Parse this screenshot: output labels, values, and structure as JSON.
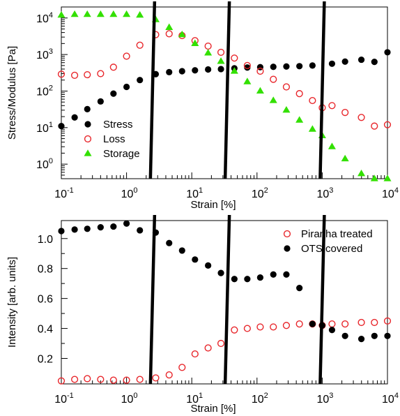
{
  "chart_data": [
    {
      "type": "scatter",
      "xlabel": "Strain [%]",
      "ylabel": "Stress/Modulus [Pa]",
      "xscale": "log",
      "yscale": "log",
      "xlim": [
        0.1,
        10000
      ],
      "ylim": [
        0.4,
        20000
      ],
      "x_ticks": [
        {
          "value": 0.1,
          "base": "10",
          "exp": "-1"
        },
        {
          "value": 1,
          "base": "10",
          "exp": "0"
        },
        {
          "value": 10,
          "base": "10",
          "exp": "1"
        },
        {
          "value": 100,
          "base": "10",
          "exp": "2"
        },
        {
          "value": 1000,
          "base": "10",
          "exp": "3"
        },
        {
          "value": 10000,
          "base": "10",
          "exp": "4"
        }
      ],
      "y_ticks": [
        {
          "value": 1,
          "base": "10",
          "exp": "0"
        },
        {
          "value": 10,
          "base": "10",
          "exp": "1"
        },
        {
          "value": 100,
          "base": "10",
          "exp": "2"
        },
        {
          "value": 1000,
          "base": "10",
          "exp": "3"
        },
        {
          "value": 10000,
          "base": "10",
          "exp": "4"
        }
      ],
      "grid": false,
      "legend_position": "bottom-left",
      "vertical_lines_x": [
        2.5,
        35,
        1000
      ],
      "series": [
        {
          "name": "Stress",
          "marker": "filled-circle",
          "color": "#000000",
          "x": [
            0.1,
            0.16,
            0.25,
            0.4,
            0.63,
            1.0,
            1.6,
            2.8,
            4.5,
            7.1,
            11.2,
            17.8,
            28,
            45,
            71,
            112,
            178,
            282,
            447,
            708,
            1412,
            2239,
            3981,
            6310,
            10000
          ],
          "y": [
            11,
            19,
            32,
            52,
            85,
            130,
            200,
            290,
            330,
            350,
            370,
            390,
            400,
            420,
            440,
            450,
            460,
            470,
            480,
            500,
            560,
            640,
            720,
            630,
            1150
          ]
        },
        {
          "name": "Loss",
          "marker": "open-circle",
          "color": "#e8262b",
          "x": [
            0.1,
            0.16,
            0.25,
            0.4,
            0.63,
            1.0,
            1.6,
            2.8,
            4.5,
            7.1,
            11.2,
            17.8,
            28,
            45,
            71,
            112,
            178,
            282,
            447,
            708,
            1000,
            1412,
            2239,
            3981,
            6310,
            10000
          ],
          "y": [
            290,
            270,
            280,
            300,
            450,
            900,
            1800,
            3500,
            3700,
            3300,
            2400,
            1700,
            1150,
            800,
            500,
            350,
            210,
            130,
            85,
            55,
            35,
            40,
            26,
            19,
            11,
            12
          ]
        },
        {
          "name": "Storage",
          "marker": "filled-triangle",
          "color": "#33e000",
          "x": [
            0.1,
            0.16,
            0.25,
            0.4,
            0.63,
            1.0,
            1.6,
            2.8,
            4.5,
            7.1,
            11.2,
            17.8,
            28,
            45,
            71,
            112,
            178,
            282,
            447,
            708,
            1000,
            1412,
            2239,
            3981,
            6310,
            10000
          ],
          "y": [
            12000,
            12500,
            12500,
            12500,
            12500,
            12500,
            12000,
            9000,
            5500,
            3500,
            2000,
            1100,
            650,
            350,
            180,
            100,
            55,
            30,
            16,
            9,
            6,
            3,
            1.4,
            0.55,
            0.4,
            0.4
          ]
        }
      ]
    },
    {
      "type": "scatter",
      "xlabel": "Strain [%]",
      "ylabel": "Intensity [arb. units]",
      "xscale": "log",
      "yscale": "linear",
      "xlim": [
        0.1,
        10000
      ],
      "ylim": [
        0.03,
        1.12
      ],
      "x_ticks": [
        {
          "value": 0.1,
          "base": "10",
          "exp": "-1"
        },
        {
          "value": 1,
          "base": "10",
          "exp": "0"
        },
        {
          "value": 10,
          "base": "10",
          "exp": "1"
        },
        {
          "value": 100,
          "base": "10",
          "exp": "2"
        },
        {
          "value": 1000,
          "base": "10",
          "exp": "3"
        },
        {
          "value": 10000,
          "base": "10",
          "exp": "4"
        }
      ],
      "y_ticks": [
        {
          "value": 0.2,
          "label": "0.2"
        },
        {
          "value": 0.4,
          "label": "0.4"
        },
        {
          "value": 0.6,
          "label": "0.6"
        },
        {
          "value": 0.8,
          "label": "0.8"
        },
        {
          "value": 1.0,
          "label": "1.0"
        }
      ],
      "grid": false,
      "legend_position": "top-right",
      "vertical_lines_x": [
        2.5,
        35,
        1000
      ],
      "series": [
        {
          "name": "Piranha treated",
          "marker": "open-circle",
          "color": "#e8262b",
          "x": [
            0.1,
            0.16,
            0.25,
            0.4,
            0.63,
            1.0,
            1.6,
            2.8,
            4.5,
            7.1,
            11.2,
            17.8,
            28,
            45,
            71,
            112,
            178,
            282,
            447,
            708,
            1000,
            1412,
            2239,
            3981,
            6310,
            10000
          ],
          "y": [
            0.05,
            0.06,
            0.065,
            0.06,
            0.055,
            0.055,
            0.06,
            0.07,
            0.09,
            0.14,
            0.23,
            0.27,
            0.3,
            0.39,
            0.4,
            0.41,
            0.41,
            0.42,
            0.43,
            0.43,
            0.42,
            0.43,
            0.43,
            0.44,
            0.44,
            0.45
          ]
        },
        {
          "name": "OTS covered",
          "marker": "filled-circle",
          "color": "#000000",
          "x": [
            0.1,
            0.16,
            0.25,
            0.4,
            0.63,
            1.0,
            1.6,
            2.8,
            4.5,
            7.1,
            11.2,
            17.8,
            28,
            45,
            71,
            112,
            178,
            282,
            447,
            708,
            1000,
            1412,
            2239,
            3981,
            6310,
            10000
          ],
          "y": [
            1.05,
            1.06,
            1.065,
            1.075,
            1.08,
            1.1,
            1.055,
            1.04,
            0.97,
            0.92,
            0.86,
            0.82,
            0.77,
            0.73,
            0.73,
            0.74,
            0.76,
            0.76,
            0.67,
            0.43,
            0.42,
            0.39,
            0.35,
            0.33,
            0.35,
            0.35
          ]
        }
      ]
    }
  ]
}
